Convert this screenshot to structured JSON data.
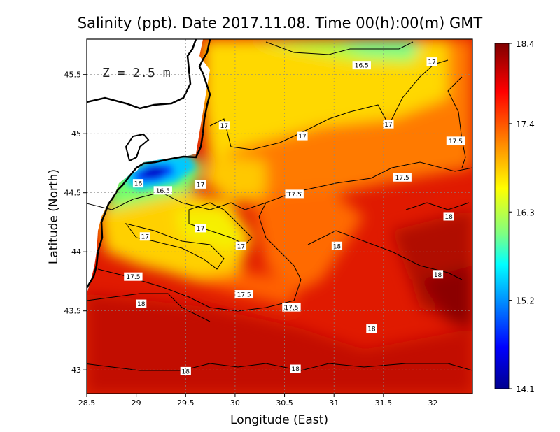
{
  "chart_data": {
    "type": "heatmap",
    "title": "Salinity (ppt). Date 2017.11.08. Time 00(h):00(m) GMT",
    "xlabel": "Longitude (East)",
    "ylabel": "Latitude (North)",
    "annotation": "Z = 2.5 m",
    "xlim": [
      28.5,
      32.4
    ],
    "ylim": [
      42.8,
      45.8
    ],
    "x_ticks": [
      "28.5",
      "29",
      "29.5",
      "30",
      "30.5",
      "31",
      "31.5",
      "32"
    ],
    "y_ticks": [
      "43",
      "43.5",
      "44",
      "44.5",
      "45",
      "45.5"
    ],
    "grid": true,
    "colorbar": {
      "min": 14.1,
      "max": 18.4,
      "ticks": [
        "18.4",
        "17.4",
        "16.3",
        "15.2",
        "14.1"
      ],
      "colormap": [
        "#00008f",
        "#0000ff",
        "#00a0ff",
        "#00ffff",
        "#80ff80",
        "#ffff00",
        "#ff8000",
        "#ff0000",
        "#800000"
      ],
      "placement": "right"
    },
    "contour_labels": [
      {
        "x": 31.28,
        "y": 45.58,
        "text": "16.5"
      },
      {
        "x": 31.99,
        "y": 45.61,
        "text": "17"
      },
      {
        "x": 31.55,
        "y": 45.08,
        "text": "17"
      },
      {
        "x": 29.89,
        "y": 45.07,
        "text": "17"
      },
      {
        "x": 30.68,
        "y": 44.98,
        "text": "17"
      },
      {
        "x": 32.23,
        "y": 44.94,
        "text": "17.5"
      },
      {
        "x": 31.69,
        "y": 44.63,
        "text": "17.5"
      },
      {
        "x": 29.02,
        "y": 44.58,
        "text": "16"
      },
      {
        "x": 29.27,
        "y": 44.52,
        "text": "16.5"
      },
      {
        "x": 29.65,
        "y": 44.57,
        "text": "17"
      },
      {
        "x": 30.6,
        "y": 44.49,
        "text": "17.5"
      },
      {
        "x": 32.16,
        "y": 44.3,
        "text": "18"
      },
      {
        "x": 29.65,
        "y": 44.2,
        "text": "17"
      },
      {
        "x": 29.09,
        "y": 44.13,
        "text": "17"
      },
      {
        "x": 30.06,
        "y": 44.05,
        "text": "17"
      },
      {
        "x": 31.03,
        "y": 44.05,
        "text": "18"
      },
      {
        "x": 32.05,
        "y": 43.81,
        "text": "18"
      },
      {
        "x": 28.97,
        "y": 43.79,
        "text": "17.5"
      },
      {
        "x": 30.09,
        "y": 43.64,
        "text": "17.5"
      },
      {
        "x": 29.05,
        "y": 43.56,
        "text": "18"
      },
      {
        "x": 30.57,
        "y": 43.53,
        "text": "17.5"
      },
      {
        "x": 31.38,
        "y": 43.35,
        "text": "18"
      },
      {
        "x": 29.5,
        "y": 42.99,
        "text": "18"
      },
      {
        "x": 30.61,
        "y": 43.01,
        "text": "18"
      }
    ]
  }
}
